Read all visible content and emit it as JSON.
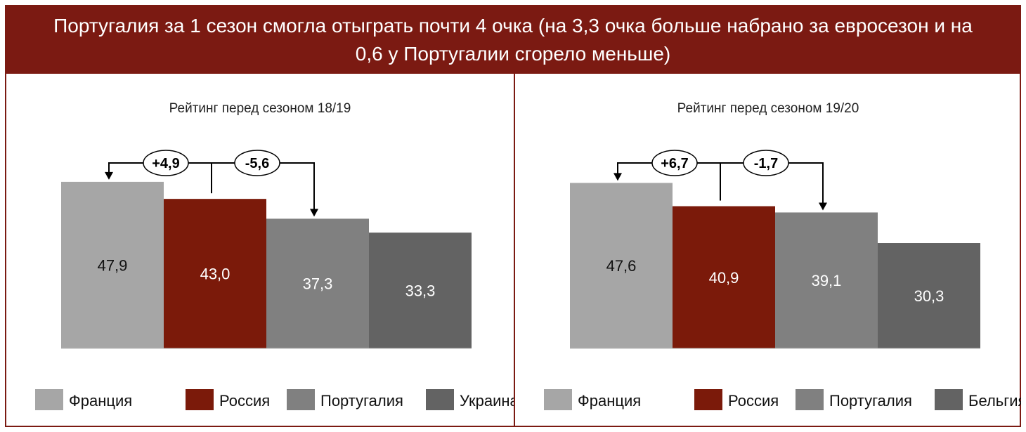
{
  "header": {
    "title": "Португалия за 1 сезон смогла отыграть почти 4 очка (на 3,3 очка больше набрано за евросезон и на 0,6 у Португалии сгорело меньше)",
    "background": "#7b1a12",
    "color": "#ffffff"
  },
  "chart_data": [
    {
      "type": "bar",
      "title": "Рейтинг перед сезоном 18/19",
      "categories": [
        "Франция",
        "Россия",
        "Португалия",
        "Украина"
      ],
      "values": [
        47.9,
        43.0,
        37.3,
        33.3
      ],
      "value_labels": [
        "47,9",
        "43,0",
        "37,3",
        "33,3"
      ],
      "colors": [
        "#a6a6a6",
        "#7b1a0a",
        "#808080",
        "#636363"
      ],
      "legend": "bottom",
      "grid": false,
      "annotations": [
        "+4,9",
        "-5,6"
      ]
    },
    {
      "type": "bar",
      "title": "Рейтинг перед сезоном 19/20",
      "categories": [
        "Франция",
        "Россия",
        "Португалия",
        "Бельгия"
      ],
      "values": [
        47.6,
        40.9,
        39.1,
        30.3
      ],
      "value_labels": [
        "47,6",
        "40,9",
        "39,1",
        "30,3"
      ],
      "colors": [
        "#a6a6a6",
        "#7b1a0a",
        "#808080",
        "#636363"
      ],
      "legend": "bottom",
      "grid": false,
      "annotations": [
        "+6,7",
        "-1,7"
      ]
    }
  ]
}
